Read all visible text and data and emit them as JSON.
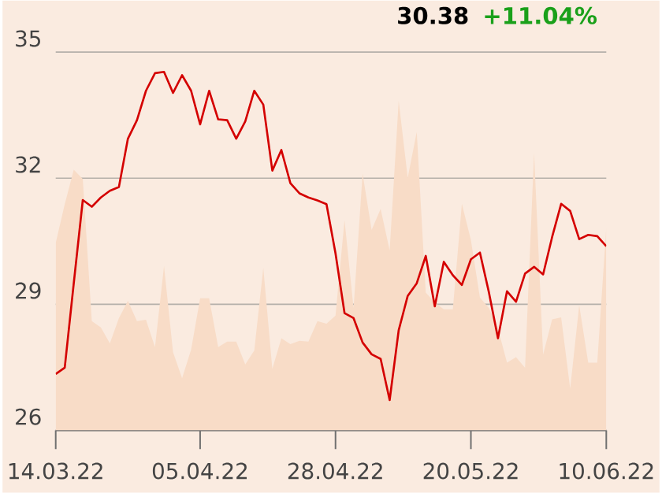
{
  "chart_data": {
    "type": "line",
    "annotations": [
      "30.38",
      "+11.04%"
    ],
    "categories": [
      "14.03.22",
      null,
      null,
      null,
      null,
      null,
      null,
      null,
      null,
      null,
      null,
      null,
      null,
      null,
      null,
      null,
      "05.04.22",
      null,
      null,
      null,
      null,
      null,
      null,
      null,
      null,
      null,
      null,
      null,
      null,
      null,
      null,
      "28.04.22",
      null,
      null,
      null,
      null,
      null,
      null,
      null,
      null,
      null,
      null,
      null,
      null,
      null,
      null,
      "20.05.22",
      null,
      null,
      null,
      null,
      null,
      null,
      null,
      null,
      null,
      null,
      null,
      null,
      null,
      null,
      "10.06.22"
    ],
    "ylim": [
      26,
      35
    ],
    "yticks": [
      26,
      29,
      32,
      35
    ],
    "grid": "y",
    "series": [
      {
        "type": "area",
        "color": "#f8dcc7",
        "values": [
          30.46,
          31.38,
          32.2,
          31.98,
          28.6,
          28.45,
          28.07,
          28.67,
          29.08,
          28.6,
          28.63,
          27.98,
          29.91,
          27.86,
          27.24,
          27.92,
          29.14,
          29.14,
          27.98,
          28.11,
          28.11,
          27.57,
          27.9,
          29.87,
          27.46,
          28.19,
          28.05,
          28.13,
          28.11,
          28.6,
          28.54,
          28.73,
          31.0,
          28.91,
          32.11,
          30.77,
          31.27,
          30.28,
          33.84,
          32.01,
          33.1,
          29.28,
          29.04,
          28.88,
          28.88,
          31.39,
          30.53,
          29.16,
          28.91,
          28.42,
          27.61,
          27.74,
          27.49,
          32.61,
          27.8,
          28.64,
          28.69,
          26.99,
          28.98,
          27.61,
          27.61,
          30.83
        ]
      },
      {
        "color": "#d40000",
        "values": [
          27.34,
          27.49,
          29.5,
          31.48,
          31.32,
          31.54,
          31.7,
          31.79,
          32.94,
          33.38,
          34.08,
          34.5,
          34.53,
          34.03,
          34.45,
          34.08,
          33.28,
          34.08,
          33.4,
          33.38,
          32.94,
          33.35,
          34.08,
          33.75,
          32.18,
          32.67,
          31.88,
          31.64,
          31.54,
          31.47,
          31.38,
          30.21,
          28.79,
          28.67,
          28.09,
          27.81,
          27.7,
          26.72,
          28.38,
          29.2,
          29.5,
          30.15,
          28.95,
          30.01,
          29.69,
          29.46,
          30.07,
          30.23,
          29.28,
          28.19,
          29.31,
          29.06,
          29.73,
          29.89,
          29.71,
          30.6,
          31.39,
          31.22,
          30.55,
          30.65,
          30.62,
          30.38
        ]
      }
    ]
  }
}
